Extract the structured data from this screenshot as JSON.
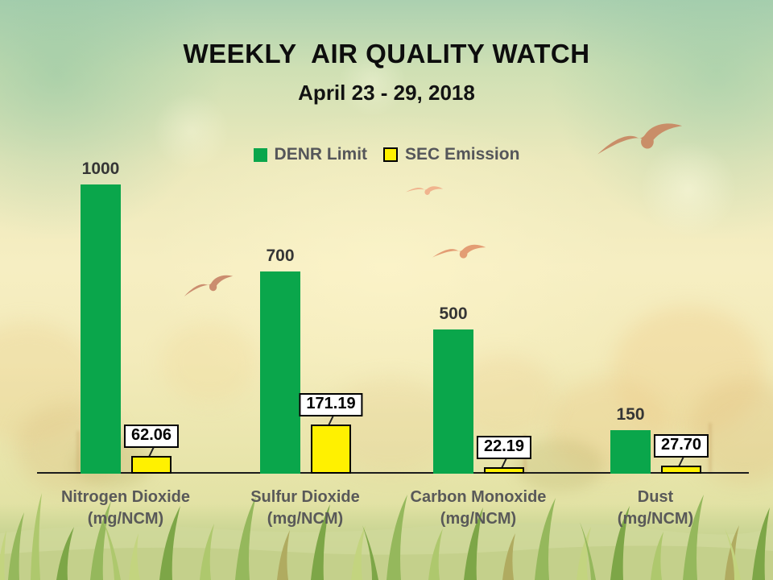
{
  "page": {
    "title": "WEEKLY  AIR QUALITY WATCH",
    "subtitle": "April 23 - 29, 2018"
  },
  "legend": {
    "items": [
      {
        "label": "DENR Limit",
        "color": "#0AA64B",
        "bordered": false
      },
      {
        "label": "SEC Emission",
        "color": "#FFF100",
        "bordered": true
      }
    ]
  },
  "chart_data": {
    "type": "bar",
    "title": "WEEKLY AIR QUALITY WATCH",
    "subtitle": "April 23 - 29, 2018",
    "legend_position": "top-center",
    "grid": false,
    "y_axis_visible": false,
    "ylim": [
      0,
      1000
    ],
    "series_names": [
      "DENR Limit",
      "SEC Emission"
    ],
    "colors": {
      "denr_limit": "#0AA64B",
      "sec_emission": "#FFF100"
    },
    "groups": [
      {
        "category": "Nitrogen Dioxide",
        "unit": "(mg/NCM)",
        "denr_limit": 1000,
        "denr_limit_label": "1000",
        "sec_emission": 62.06,
        "sec_emission_label": "62.06"
      },
      {
        "category": "Sulfur Dioxide",
        "unit": "(mg/NCM)",
        "denr_limit": 700,
        "denr_limit_label": "700",
        "sec_emission": 171.19,
        "sec_emission_label": "171.19"
      },
      {
        "category": "Carbon Monoxide",
        "unit": "(mg/NCM)",
        "denr_limit": 500,
        "denr_limit_label": "500",
        "sec_emission": 22.19,
        "sec_emission_label": "22.19"
      },
      {
        "category": "Dust",
        "unit": "(mg/NCM)",
        "denr_limit": 150,
        "denr_limit_label": "150",
        "sec_emission": 27.7,
        "sec_emission_label": "27.70"
      }
    ]
  }
}
